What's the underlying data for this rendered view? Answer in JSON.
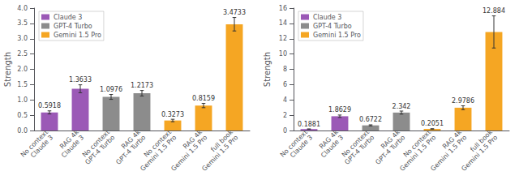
{
  "chart_data": [
    {
      "type": "bar",
      "categories": [
        "No context\nClaude 3",
        "RAG 4k\nClaude 3",
        "No context\nGPT-4 Turbo",
        "RAG 4k\nGPT-4 Turbo",
        "No context\nGemini 1.5 Pro",
        "RAG 4k\nGemini 1.5 Pro",
        "full book\nGemini 1.5 Pro"
      ],
      "series": [
        {
          "name": "Claude 3",
          "color": "#9b59b6",
          "values": [
            0.5918,
            1.3633,
            null,
            null,
            null,
            null,
            null
          ],
          "errors": [
            0.05,
            0.13,
            null,
            null,
            null,
            null,
            null
          ]
        },
        {
          "name": "GPT-4 Turbo",
          "color": "#8c8c8c",
          "values": [
            null,
            null,
            1.0976,
            1.2173,
            null,
            null,
            null
          ],
          "errors": [
            null,
            null,
            0.08,
            0.09,
            null,
            null,
            null
          ]
        },
        {
          "name": "Gemini 1.5 Pro",
          "color": "#f5a623",
          "values": [
            null,
            null,
            null,
            null,
            0.3273,
            0.8159,
            3.4733
          ],
          "errors": [
            null,
            null,
            null,
            null,
            0.04,
            0.07,
            0.22
          ]
        }
      ],
      "ylabel": "Strength",
      "ylim": [
        0,
        4.0
      ],
      "yticks": [
        {
          "value": 0,
          "label": "0.0"
        },
        0.5,
        {
          "value": 1,
          "label": "1.0"
        },
        1.5,
        {
          "value": 2,
          "label": "2.0"
        },
        2.5,
        {
          "value": 3,
          "label": "3.0"
        },
        3.5,
        {
          "value": 4,
          "label": "4.0"
        }
      ],
      "grid": false,
      "legend": "upper left",
      "data_labels": true
    },
    {
      "type": "bar",
      "categories": [
        "No context\nClaude 3",
        "RAG 4k\nClaude 3",
        "No context\nGPT-4 Turbo",
        "RAG 4k\nGPT-4 Turbo",
        "No context\nGemini 1.5 Pro",
        "RAG 4k\nGemini 1.5 Pro",
        "full book\nGemini 1.5 Pro"
      ],
      "series": [
        {
          "name": "Claude 3",
          "color": "#9b59b6",
          "values": [
            0.1881,
            1.8629,
            null,
            null,
            null,
            null,
            null
          ],
          "errors": [
            0.02,
            0.16,
            null,
            null,
            null,
            null,
            null
          ]
        },
        {
          "name": "GPT-4 Turbo",
          "color": "#8c8c8c",
          "values": [
            null,
            null,
            0.6722,
            2.342,
            null,
            null,
            null
          ],
          "errors": [
            null,
            null,
            0.07,
            0.2,
            null,
            null,
            null
          ]
        },
        {
          "name": "Gemini 1.5 Pro",
          "color": "#f5a623",
          "values": [
            null,
            null,
            null,
            null,
            0.2051,
            2.9786,
            12.884
          ],
          "errors": [
            null,
            null,
            null,
            null,
            0.03,
            0.25,
            2.1
          ]
        }
      ],
      "ylabel": "Strength",
      "ylim": [
        0,
        16
      ],
      "yticks": [
        0,
        2,
        4,
        6,
        8,
        10,
        12,
        14,
        16
      ],
      "grid": false,
      "legend": "upper left",
      "data_labels": true
    }
  ]
}
